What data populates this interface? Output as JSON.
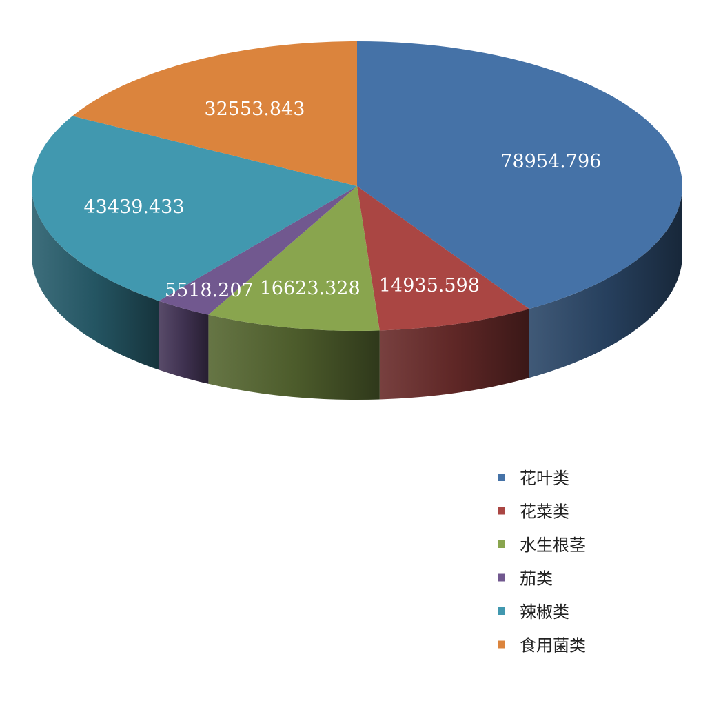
{
  "chart_data": {
    "type": "pie",
    "style": "3d",
    "categories": [
      "花叶类",
      "花菜类",
      "水生根茎",
      "茄类",
      "辣椒类",
      "食用菌类"
    ],
    "values": [
      78954.796,
      14935.598,
      16623.328,
      5518.207,
      43439.433,
      32553.843
    ],
    "value_labels": [
      "78954.796",
      "14935.598",
      "16623.328",
      "5518.207",
      "43439.433",
      "32553.843"
    ],
    "colors": [
      "#4572A7",
      "#AA4643",
      "#89A54E",
      "#71588F",
      "#4198AF",
      "#DB843D"
    ],
    "legend_position": "bottom-right",
    "title": ""
  }
}
